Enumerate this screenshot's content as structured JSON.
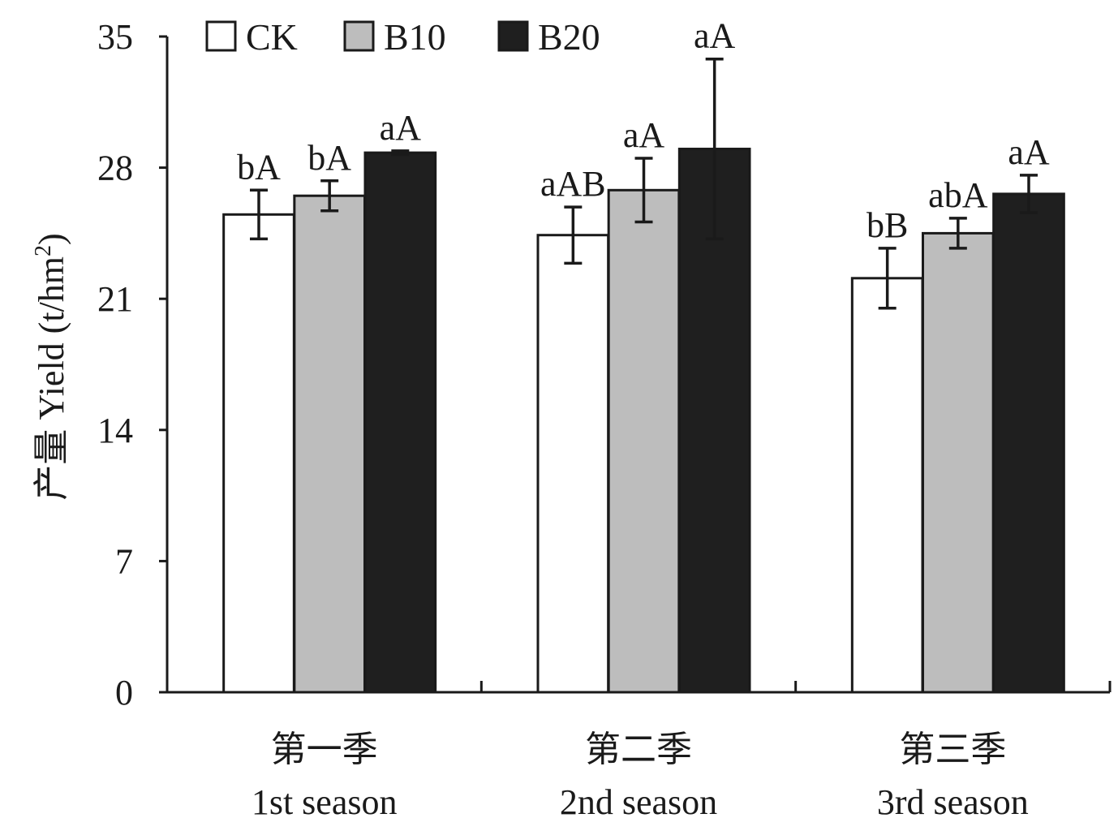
{
  "chart_data": {
    "type": "bar",
    "title": "",
    "ylabel": "产量 Yield (t/hm²)",
    "ylabel_main": "产量 Yield (t/hm",
    "ylabel_sup": "2",
    "ylabel_close": ")",
    "ylim": [
      0,
      35
    ],
    "yticks": [
      "0",
      "7",
      "14",
      "21",
      "28",
      "35"
    ],
    "grid": false,
    "legend_position": "top-left",
    "categories": [
      {
        "zh": "第一季",
        "en": "1st season"
      },
      {
        "zh": "第二季",
        "en": "2nd season"
      },
      {
        "zh": "第三季",
        "en": "3rd season"
      }
    ],
    "series": [
      {
        "name": "CK",
        "color": "#ffffff",
        "values": [
          25.5,
          24.4,
          22.1
        ],
        "errors": [
          1.3,
          1.5,
          1.6
        ],
        "labels": [
          "bA",
          "aAB",
          "bB"
        ]
      },
      {
        "name": "B10",
        "color": "#bdbdbd",
        "values": [
          26.5,
          26.8,
          24.5
        ],
        "errors": [
          0.8,
          1.7,
          0.8
        ],
        "labels": [
          "bA",
          "aA",
          "abA"
        ]
      },
      {
        "name": "B20",
        "color": "#1f1f1f",
        "values": [
          28.8,
          29.0,
          26.6
        ],
        "errors": [
          0.1,
          4.8,
          1.0
        ],
        "labels": [
          "aA",
          "aA",
          "aA"
        ]
      }
    ]
  }
}
